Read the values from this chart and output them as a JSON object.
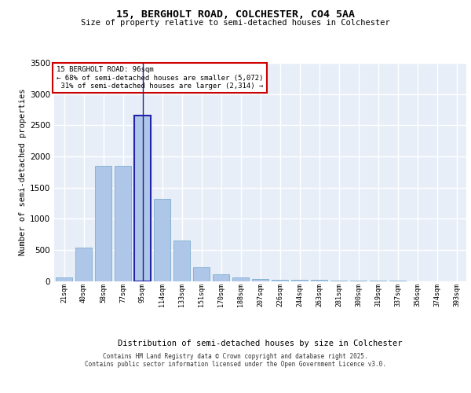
{
  "title": "15, BERGHOLT ROAD, COLCHESTER, CO4 5AA",
  "subtitle": "Size of property relative to semi-detached houses in Colchester",
  "xlabel": "Distribution of semi-detached houses by size in Colchester",
  "ylabel": "Number of semi-detached properties",
  "categories": [
    "21sqm",
    "40sqm",
    "58sqm",
    "77sqm",
    "95sqm",
    "114sqm",
    "133sqm",
    "151sqm",
    "170sqm",
    "188sqm",
    "207sqm",
    "226sqm",
    "244sqm",
    "263sqm",
    "281sqm",
    "300sqm",
    "319sqm",
    "337sqm",
    "356sqm",
    "374sqm",
    "393sqm"
  ],
  "values": [
    55,
    540,
    1850,
    1850,
    2650,
    1320,
    650,
    220,
    105,
    55,
    35,
    25,
    20,
    15,
    5,
    2,
    1,
    1,
    0,
    0,
    0
  ],
  "bar_color": "#aec6e8",
  "bar_edge_color": "#7aaed0",
  "highlight_index": 4,
  "highlight_edge_color": "#2222aa",
  "property_label": "15 BERGHOLT ROAD: 96sqm",
  "pct_smaller": 68,
  "pct_larger": 31,
  "count_smaller": 5072,
  "count_larger": 2314,
  "annotation_box_color": "#ffffff",
  "annotation_box_edge": "#cc0000",
  "ylim": [
    0,
    3500
  ],
  "yticks": [
    0,
    500,
    1000,
    1500,
    2000,
    2500,
    3000,
    3500
  ],
  "background_color": "#e8eef8",
  "grid_color": "#ffffff",
  "footer_line1": "Contains HM Land Registry data © Crown copyright and database right 2025.",
  "footer_line2": "Contains public sector information licensed under the Open Government Licence v3.0."
}
